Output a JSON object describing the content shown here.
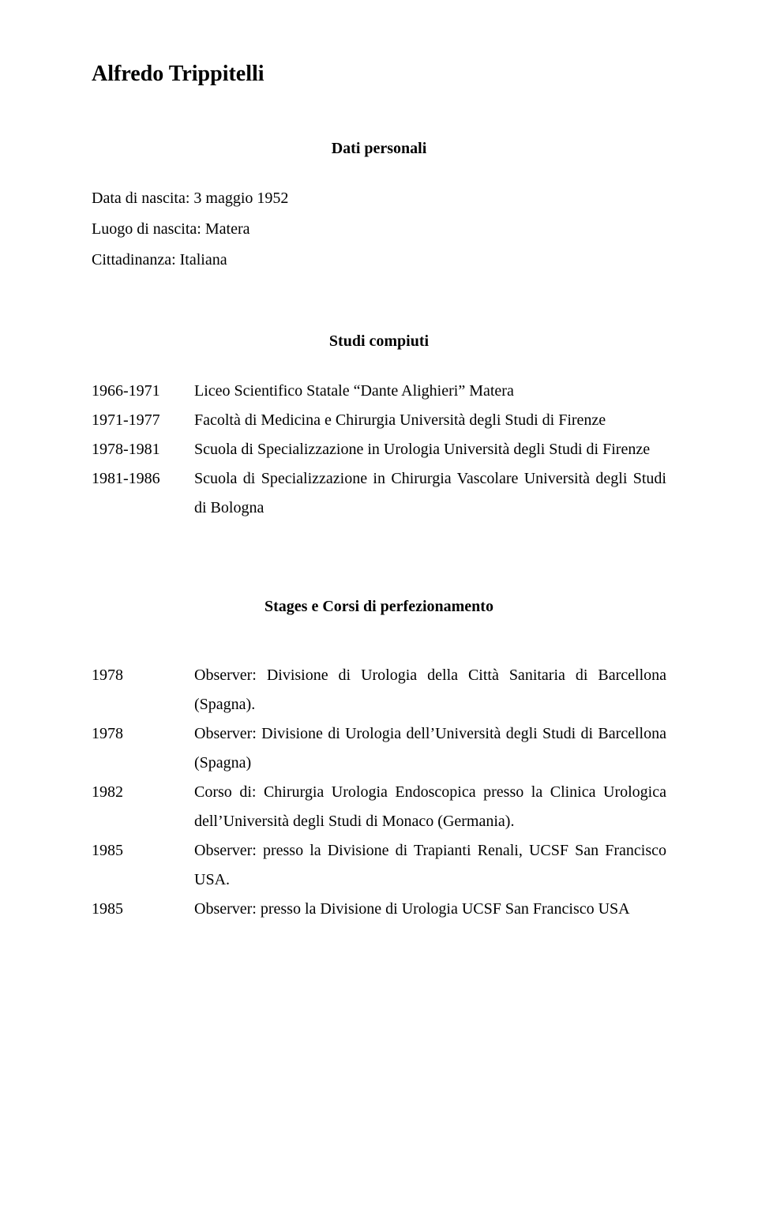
{
  "title": "Alfredo Trippitelli",
  "personal_heading": "Dati personali",
  "birth_date_line": "Data di nascita: 3 maggio 1952",
  "birth_place_line": "Luogo di nascita: Matera",
  "citizenship_line": "Cittadinanza: Italiana",
  "studies_heading": "Studi compiuti",
  "studies": [
    {
      "years": "1966-1971",
      "text": "Liceo Scientifico Statale “Dante Alighieri” Matera"
    },
    {
      "years": "1971-1977",
      "text": "Facoltà di Medicina e Chirurgia Università degli Studi di Firenze"
    },
    {
      "years": "1978-1981",
      "text": "Scuola di Specializzazione in Urologia Università degli Studi di Firenze"
    },
    {
      "years": "1981-1986",
      "text": "Scuola di Specializzazione in Chirurgia Vascolare Università degli Studi di Bologna"
    }
  ],
  "stages_heading": "Stages e Corsi di perfezionamento",
  "stages": [
    {
      "years": "1978",
      "text": "Observer: Divisione di Urologia della Città Sanitaria di Barcellona (Spagna)."
    },
    {
      "years": "1978",
      "text": "Observer: Divisione di Urologia dell’Università degli Studi di Barcellona (Spagna)"
    },
    {
      "years": "1982",
      "text": "Corso di: Chirurgia Urologia Endoscopica presso la Clinica Urologica dell’Università degli Studi di Monaco (Germania)."
    },
    {
      "years": "1985",
      "text": "Observer: presso la Divisione di Trapianti Renali, UCSF San Francisco USA."
    },
    {
      "years": "1985",
      "text": "Observer: presso la Divisione di Urologia UCSF San Francisco USA"
    }
  ]
}
